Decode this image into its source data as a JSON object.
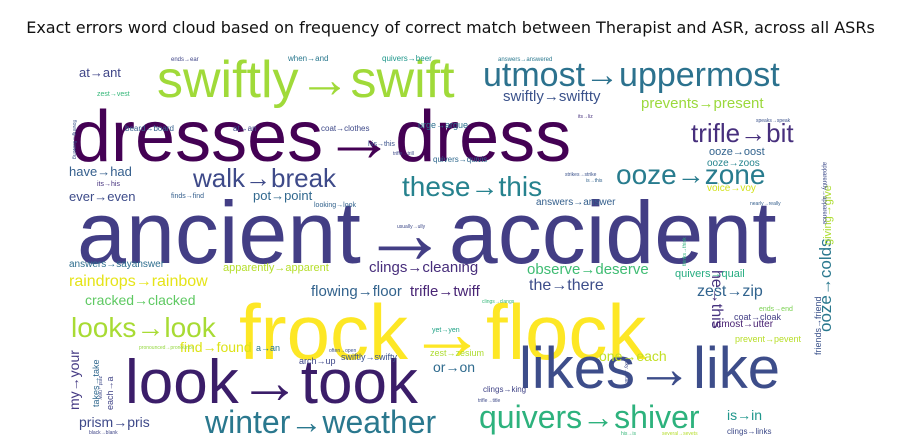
{
  "title": "Exact errors word cloud based on frequency of correct match between Therapist and ASR, across all ASRs",
  "colors": {
    "background": "#ffffff",
    "palette": "viridis"
  },
  "words": [
    {
      "text": "ancient→accident",
      "weight": 100,
      "color": "#433e85"
    },
    {
      "text": "frock→flock",
      "weight": 92,
      "color": "#fde725"
    },
    {
      "text": "dresses→dress",
      "weight": 90,
      "color": "#440154"
    },
    {
      "text": "look→took",
      "weight": 76,
      "color": "#3b1d69"
    },
    {
      "text": "likes→like",
      "weight": 74,
      "color": "#3d4d8a"
    },
    {
      "text": "swiftly→swift",
      "weight": 66,
      "color": "#a0da39"
    },
    {
      "text": "utmost→uppermost",
      "weight": 42,
      "color": "#2c728e"
    },
    {
      "text": "winter→weather",
      "weight": 38,
      "color": "#2a788e"
    },
    {
      "text": "quivers→shiver",
      "weight": 38,
      "color": "#2db27d"
    },
    {
      "text": "looks→look",
      "weight": 36,
      "color": "#a8db34"
    },
    {
      "text": "these→this",
      "weight": 34,
      "color": "#26828e"
    },
    {
      "text": "ooze→zone",
      "weight": 34,
      "color": "#287c8e"
    },
    {
      "text": "walk→break",
      "weight": 31,
      "color": "#3e4a89"
    },
    {
      "text": "trifle→bit",
      "weight": 29,
      "color": "#472f7d"
    },
    {
      "text": "swiftly→swiftty",
      "weight": 16,
      "color": "#3b528b"
    },
    {
      "text": "prevents→present",
      "weight": 14,
      "color": "#9bd93c"
    },
    {
      "text": "raindrops→rainbow",
      "weight": 15,
      "color": "#e5e419"
    },
    {
      "text": "clings→cleaning",
      "weight": 14,
      "color": "#472d7b"
    },
    {
      "text": "observe→deserve",
      "weight": 14,
      "color": "#3fbc73"
    },
    {
      "text": "ooze→colds",
      "weight": 16,
      "color": "#2a788e"
    },
    {
      "text": "flowing→floor",
      "weight": 15,
      "color": "#33638d"
    },
    {
      "text": "trifle→twiff",
      "weight": 15,
      "color": "#482575"
    },
    {
      "text": "the→there",
      "weight": 16,
      "color": "#3d4e8a"
    },
    {
      "text": "zest→zip",
      "weight": 16,
      "color": "#32648e"
    },
    {
      "text": "he→this",
      "weight": 16,
      "color": "#46327e"
    },
    {
      "text": "cracked→clacked",
      "weight": 14,
      "color": "#5ec962"
    },
    {
      "text": "find→found",
      "weight": 14,
      "color": "#dde318"
    },
    {
      "text": "one→each",
      "weight": 14,
      "color": "#c2df23"
    },
    {
      "text": "or→on",
      "weight": 14,
      "color": "#2f6b8e"
    },
    {
      "text": "is→in",
      "weight": 14,
      "color": "#1f978b"
    },
    {
      "text": "prism→pris",
      "weight": 13,
      "color": "#3e4989"
    },
    {
      "text": "my→your",
      "weight": 14,
      "color": "#443983"
    },
    {
      "text": "at→ant",
      "weight": 13,
      "color": "#404688"
    },
    {
      "text": "have→had",
      "weight": 13,
      "color": "#355f8d"
    },
    {
      "text": "ever→even",
      "weight": 13,
      "color": "#3e4c8a"
    },
    {
      "text": "pot→point",
      "weight": 12,
      "color": "#31688e"
    },
    {
      "text": "ooze→oost",
      "weight": 11,
      "color": "#33638d"
    },
    {
      "text": "ooze→zoos",
      "weight": 9,
      "color": "#25848e"
    },
    {
      "text": "giving→give",
      "weight": 10,
      "color": "#addc30"
    },
    {
      "text": "answers→answer",
      "weight": 10,
      "color": "#35608d"
    },
    {
      "text": "apparently→apparent",
      "weight": 10,
      "color": "#b5de2b"
    },
    {
      "text": "quivers→quail",
      "weight": 10,
      "color": "#26ad81"
    },
    {
      "text": "answers→sayanswer",
      "weight": 9,
      "color": "#2e6e8e"
    },
    {
      "text": "voice→voy",
      "weight": 9,
      "color": "#d2e21b"
    },
    {
      "text": "utmost→utter",
      "weight": 9,
      "color": "#482071"
    },
    {
      "text": "coat→cloak",
      "weight": 8,
      "color": "#433e85"
    },
    {
      "text": "friends→friend",
      "weight": 8,
      "color": "#3b528b"
    },
    {
      "text": "takes→take",
      "weight": 8,
      "color": "#31688e"
    },
    {
      "text": "each→a",
      "weight": 8,
      "color": "#414487"
    },
    {
      "text": "a→an",
      "weight": 8,
      "color": "#2a788e"
    },
    {
      "text": "arch→up",
      "weight": 8,
      "color": "#3f4889"
    },
    {
      "text": "swiftly→swifty",
      "weight": 8,
      "color": "#3b528b"
    },
    {
      "text": "zest→zesium",
      "weight": 8,
      "color": "#addc30"
    },
    {
      "text": "clings→king",
      "weight": 7,
      "color": "#414487"
    },
    {
      "text": "clings→links",
      "weight": 7,
      "color": "#3e4a89"
    },
    {
      "text": "prevent→pevent",
      "weight": 8,
      "color": "#b8de29"
    },
    {
      "text": "yet→yen",
      "weight": 6,
      "color": "#20a386"
    },
    {
      "text": "coat→clothes",
      "weight": 7,
      "color": "#3e4989"
    },
    {
      "text": "urge→argue",
      "weight": 8,
      "color": "#2d708e"
    },
    {
      "text": "quivers→quivis",
      "weight": 7,
      "color": "#30698e"
    },
    {
      "text": "beard→board",
      "weight": 7,
      "color": "#355f8d"
    },
    {
      "text": "at→an",
      "weight": 7,
      "color": "#3f4889"
    },
    {
      "text": "quivers→beer",
      "weight": 7,
      "color": "#1f978b"
    },
    {
      "text": "when→and",
      "weight": 7,
      "color": "#2a788e"
    },
    {
      "text": "zest→vest",
      "weight": 6,
      "color": "#35b779"
    },
    {
      "text": "finds→find",
      "weight": 6,
      "color": "#355f8d"
    },
    {
      "text": "looking→look",
      "weight": 6,
      "color": "#33638d"
    },
    {
      "text": "his→this",
      "weight": 6,
      "color": "#3b528b"
    },
    {
      "text": "its→his",
      "weight": 6,
      "color": "#46327e"
    },
    {
      "text": "ends→end",
      "weight": 6,
      "color": "#7ad151"
    },
    {
      "text": "ends→ear",
      "weight": 5,
      "color": "#404688"
    },
    {
      "text": "answers→answered",
      "weight": 5,
      "color": "#2a788e"
    },
    {
      "text": "apparently→apparence",
      "weight": 5,
      "color": "#3e4c8a"
    },
    {
      "text": "speaks→speak",
      "weight": 4,
      "color": "#3b528b"
    },
    {
      "text": "flowing→floowing",
      "weight": 4,
      "color": "#3b528b"
    },
    {
      "text": "its→liz",
      "weight": 4,
      "color": "#46327e"
    },
    {
      "text": "trifle→trill",
      "weight": 4,
      "color": "#3e4a89"
    },
    {
      "text": "strikes→strike",
      "weight": 4,
      "color": "#3b528b"
    },
    {
      "text": "is→this",
      "weight": 4,
      "color": "#33638d"
    },
    {
      "text": "thinks→think",
      "weight": 4,
      "color": "#2db27d"
    },
    {
      "text": "nearly→really",
      "weight": 4,
      "color": "#355f8d"
    },
    {
      "text": "usually→ully",
      "weight": 4,
      "color": "#3e4a89"
    },
    {
      "text": "often→open",
      "weight": 4,
      "color": "#3b528b"
    },
    {
      "text": "pronounced→pronounce",
      "weight": 4,
      "color": "#95d840"
    },
    {
      "text": "clings→clangs",
      "weight": 4,
      "color": "#35b779"
    },
    {
      "text": "zest→new",
      "weight": 4,
      "color": "#3e4a89"
    },
    {
      "text": "black→blank",
      "weight": 4,
      "color": "#404688"
    },
    {
      "text": "trifle→title",
      "weight": 4,
      "color": "#3e4a89"
    },
    {
      "text": "his→is",
      "weight": 4,
      "color": "#35b779"
    },
    {
      "text": "several→sevets",
      "weight": 4,
      "color": "#b5de2b"
    },
    {
      "text": "sky→skat",
      "weight": 4,
      "color": "#3e4a89"
    }
  ]
}
